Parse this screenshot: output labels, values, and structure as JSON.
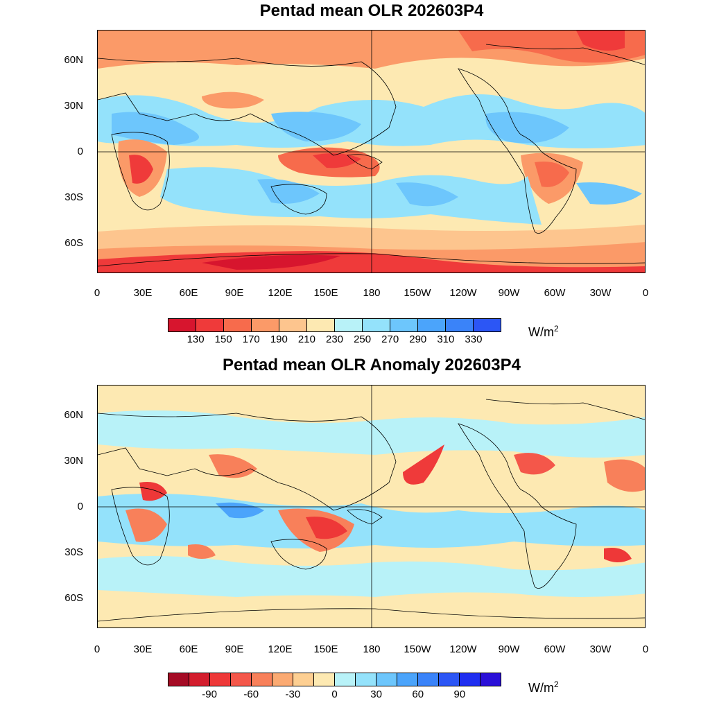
{
  "panels": [
    {
      "title": "Pentad mean OLR 202603P4",
      "units": "W/m",
      "units_sup": "2",
      "lat_labels": [
        "60N",
        "30N",
        "0",
        "30S",
        "60S"
      ],
      "lon_labels": [
        "0",
        "30E",
        "60E",
        "90E",
        "120E",
        "150E",
        "180",
        "150W",
        "120W",
        "90W",
        "60W",
        "30W",
        "0"
      ],
      "colorbar_labels": [
        "130",
        "150",
        "170",
        "190",
        "210",
        "230",
        "250",
        "270",
        "290",
        "310",
        "330"
      ],
      "colorbar_colors": [
        "#d7152e",
        "#ef3a3a",
        "#f76b4c",
        "#fb9a68",
        "#fdc58e",
        "#fde9b2",
        "#b8f2f8",
        "#94e2fb",
        "#6dc6fc",
        "#4ba4fb",
        "#3a83f9",
        "#2c56f5"
      ]
    },
    {
      "title": "Pentad mean OLR Anomaly 202603P4",
      "units": "W/m",
      "units_sup": "2",
      "lat_labels": [
        "60N",
        "30N",
        "0",
        "30S",
        "60S"
      ],
      "lon_labels": [
        "0",
        "30E",
        "60E",
        "90E",
        "120E",
        "150E",
        "180",
        "150W",
        "120W",
        "90W",
        "60W",
        "30W",
        "0"
      ],
      "colorbar_labels": [
        "-90",
        "-60",
        "-30",
        "0",
        "30",
        "60",
        "90"
      ],
      "colorbar_colors": [
        "#a50b25",
        "#d31d2d",
        "#ee3838",
        "#f4574a",
        "#f8805a",
        "#fbaa72",
        "#fdcf92",
        "#fde9b2",
        "#b8f2f8",
        "#94e2fb",
        "#6dc6fc",
        "#4ba4fb",
        "#3a83f9",
        "#2c56f5",
        "#1f2ef0",
        "#2a10d8"
      ]
    }
  ]
}
